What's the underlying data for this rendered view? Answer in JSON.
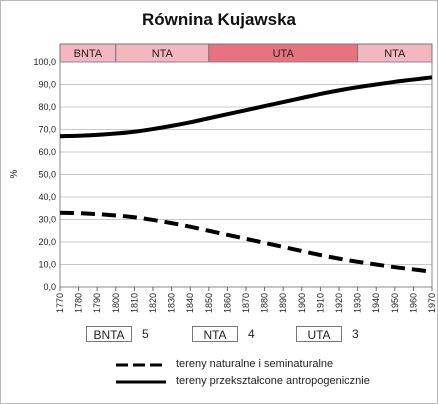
{
  "chart_data": {
    "type": "line",
    "title": "Równina Kujawska",
    "ylabel": "%",
    "xlabel": "",
    "xlim": [
      1770,
      1970
    ],
    "ylim": [
      0,
      100
    ],
    "x_ticks": [
      1770,
      1780,
      1790,
      1800,
      1810,
      1820,
      1830,
      1840,
      1850,
      1860,
      1870,
      1880,
      1890,
      1900,
      1910,
      1920,
      1930,
      1940,
      1950,
      1960,
      1970
    ],
    "y_ticks": [
      "0,0",
      "10,0",
      "20,0",
      "30,0",
      "40,0",
      "50,0",
      "60,0",
      "70,0",
      "80,0",
      "90,0",
      "100,0"
    ],
    "grid": true,
    "periods": [
      {
        "label": "BNTA",
        "start": 1770,
        "end": 1800,
        "color": "#f4b6bf"
      },
      {
        "label": "NTA",
        "start": 1800,
        "end": 1850,
        "color": "#f4b6bf"
      },
      {
        "label": "UTA",
        "start": 1850,
        "end": 1930,
        "color": "#e9727f"
      },
      {
        "label": "NTA",
        "start": 1930,
        "end": 1970,
        "color": "#f4b6bf"
      }
    ],
    "series": [
      {
        "name": "tereny naturalne i seminaturalne",
        "style": "dashed",
        "x": [
          1770,
          1780,
          1790,
          1800,
          1810,
          1820,
          1830,
          1840,
          1850,
          1860,
          1870,
          1880,
          1890,
          1900,
          1910,
          1920,
          1930,
          1940,
          1950,
          1960,
          1970
        ],
        "values": [
          33.0,
          32.8,
          32.4,
          31.8,
          31.0,
          29.8,
          28.4,
          26.8,
          25.0,
          23.2,
          21.4,
          19.6,
          17.8,
          16.0,
          14.2,
          12.6,
          11.2,
          10.0,
          8.8,
          7.8,
          6.8
        ]
      },
      {
        "name": "tereny przekształcone antropogenicznie",
        "style": "solid",
        "x": [
          1770,
          1780,
          1790,
          1800,
          1810,
          1820,
          1830,
          1840,
          1850,
          1860,
          1870,
          1880,
          1890,
          1900,
          1910,
          1920,
          1930,
          1940,
          1950,
          1960,
          1970
        ],
        "values": [
          67.0,
          67.2,
          67.6,
          68.2,
          69.0,
          70.2,
          71.6,
          73.2,
          75.0,
          76.8,
          78.6,
          80.4,
          82.2,
          84.0,
          85.8,
          87.4,
          88.8,
          90.0,
          91.2,
          92.2,
          93.2
        ]
      }
    ]
  },
  "legend_periods": [
    {
      "label": "BNTA",
      "number": "5",
      "color": "#f4b6bf"
    },
    {
      "label": "NTA",
      "number": "4",
      "color": "#f4b6bf"
    },
    {
      "label": "UTA",
      "number": "3",
      "color": "#e9727f"
    }
  ],
  "legend_lines": [
    {
      "label": "tereny naturalne i seminaturalne",
      "style": "dashed"
    },
    {
      "label": "tereny przekształcone antropogenicznie",
      "style": "solid"
    }
  ]
}
